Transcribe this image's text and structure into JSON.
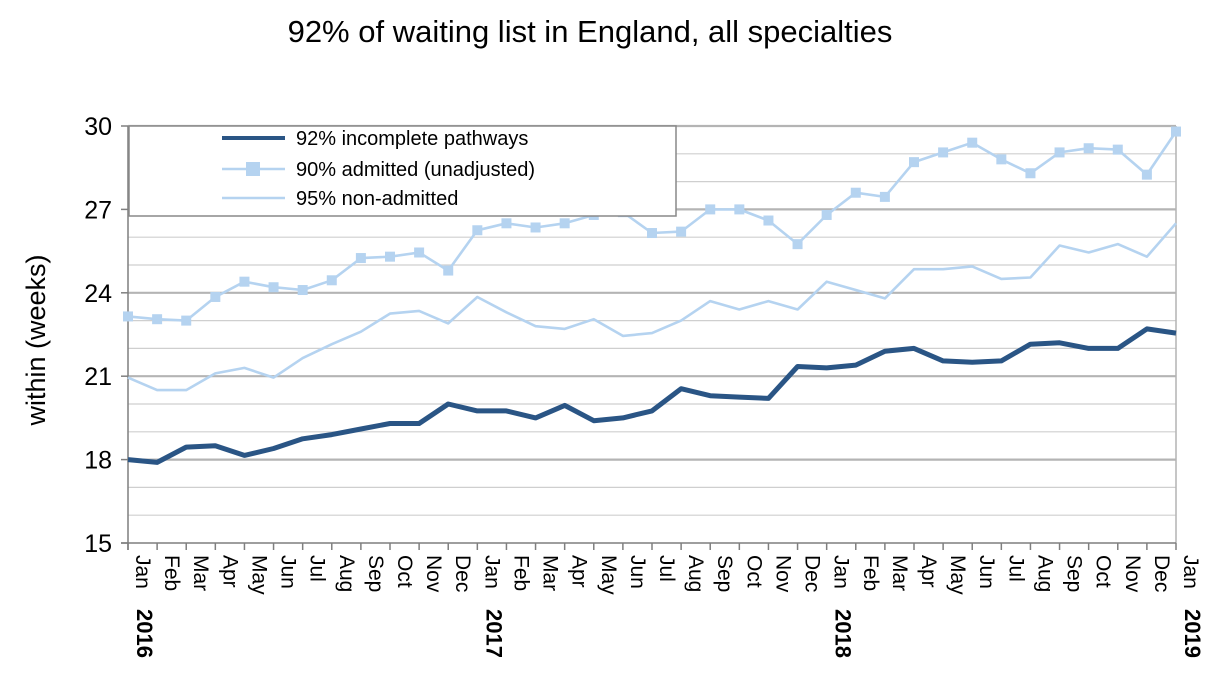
{
  "chart_data": {
    "type": "line",
    "title": "92% of waiting list in England, all specialties",
    "xlabel": "",
    "ylabel": "within  (weeks)",
    "ylim": [
      15,
      30
    ],
    "yticks": [
      15,
      18,
      21,
      24,
      27,
      30
    ],
    "grid": true,
    "legend_position": "top-left",
    "month_labels": [
      "Jan",
      "Feb",
      "Mar",
      "Apr",
      "May",
      "Jun",
      "Jul",
      "Aug",
      "Sep",
      "Oct",
      "Nov",
      "Dec",
      "Jan",
      "Feb",
      "Mar",
      "Apr",
      "May",
      "Jun",
      "Jul",
      "Aug",
      "Sep",
      "Oct",
      "Nov",
      "Dec",
      "Jan",
      "Feb",
      "Mar",
      "Apr",
      "May",
      "Jun",
      "Jul",
      "Aug",
      "Sep",
      "Oct",
      "Nov",
      "Dec",
      "Jan"
    ],
    "year_labels": [
      {
        "index": 0,
        "label": "2016"
      },
      {
        "index": 12,
        "label": "2017"
      },
      {
        "index": 24,
        "label": "2018"
      },
      {
        "index": 36,
        "label": "2019"
      }
    ],
    "series": [
      {
        "name": "92% incomplete pathways",
        "color": "#2a5585",
        "marker": "none",
        "values": [
          18.0,
          17.9,
          18.45,
          18.5,
          18.15,
          18.4,
          18.75,
          18.9,
          19.1,
          19.3,
          19.3,
          20.0,
          19.75,
          19.75,
          19.5,
          19.95,
          19.4,
          19.5,
          19.75,
          20.55,
          20.3,
          20.25,
          20.2,
          21.35,
          21.3,
          21.4,
          21.9,
          22.0,
          21.55,
          21.5,
          21.55,
          22.15,
          22.2,
          22.0,
          22.0,
          22.7,
          22.55
        ]
      },
      {
        "name": "90% admitted (unadjusted)",
        "color": "#b5d3f0",
        "marker": "square",
        "values": [
          23.15,
          23.05,
          23.0,
          23.85,
          24.4,
          24.2,
          24.1,
          24.45,
          25.25,
          25.3,
          25.45,
          24.8,
          26.25,
          26.5,
          26.35,
          26.5,
          26.8,
          26.9,
          26.15,
          26.2,
          27.0,
          27.0,
          26.6,
          25.75,
          26.8,
          27.6,
          27.45,
          28.7,
          29.05,
          29.4,
          28.8,
          28.3,
          29.05,
          29.2,
          29.15,
          28.25,
          29.8
        ]
      },
      {
        "name": "95% non-admitted",
        "color": "#b5d3f0",
        "marker": "none",
        "values": [
          20.95,
          20.5,
          20.5,
          21.1,
          21.3,
          20.95,
          21.65,
          22.15,
          22.6,
          23.25,
          23.35,
          22.9,
          23.85,
          23.3,
          22.8,
          22.7,
          23.05,
          22.45,
          22.55,
          23.0,
          23.7,
          23.4,
          23.7,
          23.4,
          24.4,
          24.1,
          23.8,
          24.85,
          24.85,
          24.95,
          24.5,
          24.55,
          25.7,
          25.45,
          25.75,
          25.3,
          26.5
        ]
      }
    ]
  }
}
